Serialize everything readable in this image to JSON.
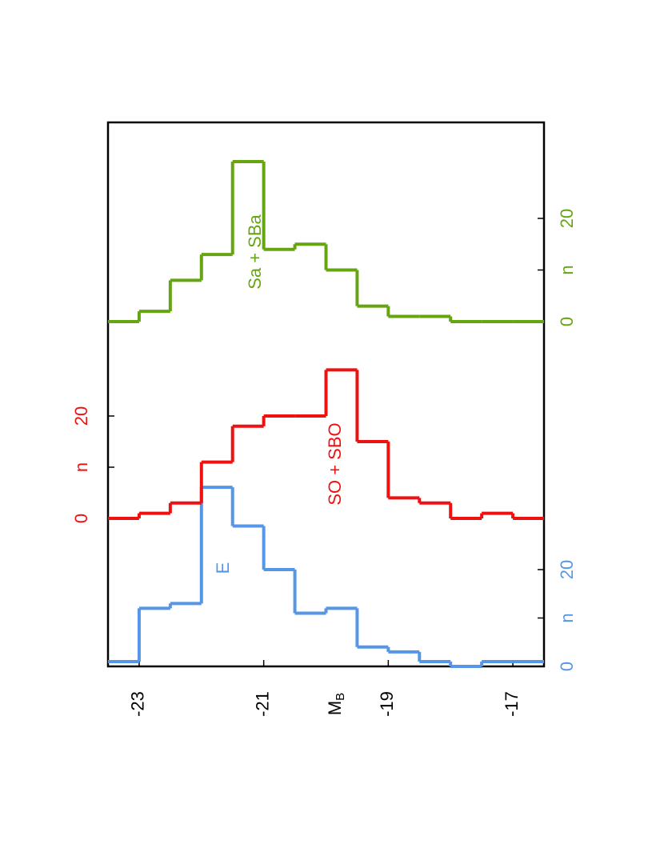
{
  "chart_data": [
    {
      "type": "histogram",
      "label": "E",
      "color": "#5596e6",
      "bins": [
        -23.5,
        -23,
        -22.5,
        -22,
        -21.5,
        -21,
        -20.5,
        -20,
        -19.5,
        -19,
        -18.5,
        -18,
        -17.5,
        -17,
        -16.5
      ],
      "values": [
        1,
        12,
        13,
        37,
        29,
        20,
        11,
        12,
        4,
        3,
        1,
        0,
        1,
        1
      ],
      "xlim": [
        -23.5,
        -16.5
      ],
      "xticks": [
        -23,
        -21,
        -19,
        -17
      ],
      "xlabel": "M",
      "xlabel_subscript": "B",
      "ylim": [
        0,
        40
      ],
      "yticks": [
        0,
        {
          "value": 10,
          "label": "n"
        },
        20
      ]
    },
    {
      "type": "histogram",
      "label": "SO + SBO",
      "color": "#ee1111",
      "bins": [
        -23.5,
        -23,
        -22.5,
        -22,
        -21.5,
        -21,
        -20.5,
        -20,
        -19.5,
        -19,
        -18.5,
        -18,
        -17.5,
        -17,
        -16.5
      ],
      "values": [
        0,
        1,
        3,
        11,
        18,
        20,
        20,
        29,
        15,
        4,
        3,
        0,
        1,
        0
      ],
      "xlim": [
        -23.5,
        -16.5
      ],
      "ylim": [
        0,
        40
      ],
      "yticks": [
        0,
        {
          "value": 10,
          "label": "n"
        },
        20
      ]
    },
    {
      "type": "histogram",
      "label": "Sa + SBa",
      "color": "#66a512",
      "bins": [
        -23.5,
        -23,
        -22.5,
        -22,
        -21.5,
        -21,
        -20.5,
        -20,
        -19.5,
        -19,
        -18.5,
        -18,
        -17.5,
        -17,
        -16.5
      ],
      "values": [
        0,
        2,
        8,
        13,
        31,
        14,
        15,
        10,
        3,
        1,
        1,
        0,
        0,
        0
      ],
      "xlim": [
        -23.5,
        -16.5
      ],
      "ylim": [
        0,
        40
      ],
      "yticks": [
        0,
        {
          "value": 10,
          "label": "n"
        },
        20
      ]
    }
  ]
}
